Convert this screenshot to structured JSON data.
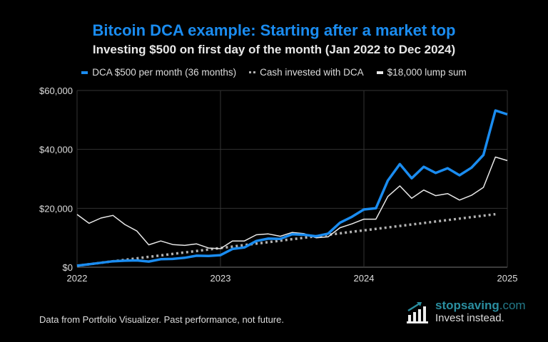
{
  "chart_data": {
    "type": "line",
    "title": "Bitcoin DCA example: Starting after a market top",
    "subtitle": "Investing $500 on first day of the month (Jan 2022 to Dec 2024)",
    "xlim": [
      "2022-01",
      "2025-01"
    ],
    "ylim": [
      0,
      60000
    ],
    "x_ticks": [
      "2022",
      "2023",
      "2024",
      "2025"
    ],
    "y_ticks": [
      "$0",
      "$20,000",
      "$40,000",
      "$60,000"
    ],
    "y_tick_values": [
      0,
      20000,
      40000,
      60000
    ],
    "x_tick_values": [
      "2022-01",
      "2023-01",
      "2024-01",
      "2025-01"
    ],
    "grid": true,
    "legend_position": "top",
    "series": [
      {
        "name": "DCA $500 per month (36 months)",
        "color": "#1a8cf0",
        "style": "solid-thick",
        "start": "2022-01",
        "values": [
          500,
          1000,
          1500,
          2000,
          2200,
          2300,
          1900,
          2700,
          2800,
          3200,
          3900,
          3800,
          4100,
          6200,
          6700,
          8900,
          9700,
          9600,
          11200,
          11000,
          10500,
          11400,
          15100,
          17100,
          19600,
          20000,
          29400,
          35000,
          30200,
          34100,
          32000,
          33600,
          31200,
          33800,
          38100,
          53200,
          51900
        ]
      },
      {
        "name": "Cash invested with DCA",
        "color": "#b0b0b0",
        "style": "dotted",
        "start": "2022-01",
        "values": [
          500,
          1000,
          1500,
          2000,
          2500,
          3000,
          3500,
          4000,
          4500,
          5000,
          5500,
          6000,
          6500,
          7000,
          7500,
          8000,
          8500,
          9000,
          9500,
          10000,
          10500,
          11000,
          11500,
          12000,
          12500,
          13000,
          13500,
          14000,
          14500,
          15000,
          15500,
          16000,
          16500,
          17000,
          17500,
          18000
        ]
      },
      {
        "name": "$18,000 lump sum",
        "color": "#e8e8e8",
        "style": "solid-thin",
        "start": "2022-01",
        "values": [
          17900,
          14900,
          16700,
          17600,
          14500,
          12300,
          7600,
          8900,
          7700,
          7400,
          7900,
          6500,
          6300,
          8900,
          8900,
          11000,
          11300,
          10500,
          11800,
          11400,
          10000,
          10300,
          13400,
          14700,
          16300,
          16300,
          24000,
          27600,
          23400,
          26200,
          24300,
          25000,
          22800,
          24400,
          27100,
          37400,
          36200
        ]
      }
    ]
  },
  "footer": "Data from Portfolio Visualizer. Past performance, not future.",
  "logo": {
    "name": "stopsaving",
    "domain": ".com",
    "tagline": "Invest instead."
  }
}
